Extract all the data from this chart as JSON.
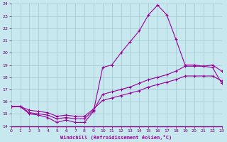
{
  "xlabel": "Windchill (Refroidissement éolien,°C)",
  "xlim": [
    0,
    23
  ],
  "ylim": [
    14,
    24
  ],
  "yticks": [
    14,
    15,
    16,
    17,
    18,
    19,
    20,
    21,
    22,
    23,
    24
  ],
  "xticks": [
    0,
    1,
    2,
    3,
    4,
    5,
    6,
    7,
    8,
    9,
    10,
    11,
    12,
    13,
    14,
    15,
    16,
    17,
    18,
    19,
    20,
    21,
    22,
    23
  ],
  "bg_color": "#c8e8f0",
  "grid_color": "#a0c8d0",
  "line_color": "#990099",
  "curve1_x": [
    0,
    1,
    2,
    3,
    4,
    5,
    6,
    7,
    8,
    9,
    10,
    11,
    12,
    13,
    14,
    15,
    16,
    17,
    18,
    19,
    20,
    21,
    22,
    23
  ],
  "curve1_y": [
    15.6,
    15.6,
    15.0,
    14.9,
    14.7,
    14.3,
    14.5,
    14.3,
    14.3,
    15.2,
    18.8,
    19.0,
    20.0,
    20.9,
    21.8,
    23.1,
    23.9,
    23.1,
    21.1,
    19.0,
    19.0,
    18.9,
    18.8,
    17.5
  ],
  "curve2_x": [
    0,
    1,
    2,
    3,
    4,
    5,
    6,
    7,
    8,
    9,
    10,
    11,
    12,
    13,
    14,
    15,
    16,
    17,
    18,
    19,
    20,
    21,
    22,
    23
  ],
  "curve2_y": [
    15.6,
    15.6,
    15.1,
    15.0,
    14.9,
    14.6,
    14.7,
    14.6,
    14.6,
    15.3,
    16.6,
    16.8,
    17.0,
    17.2,
    17.5,
    17.8,
    18.0,
    18.2,
    18.5,
    18.9,
    18.9,
    18.9,
    19.0,
    18.5
  ],
  "curve3_x": [
    0,
    1,
    2,
    3,
    4,
    5,
    6,
    7,
    8,
    9,
    10,
    11,
    12,
    13,
    14,
    15,
    16,
    17,
    18,
    19,
    20,
    21,
    22,
    23
  ],
  "curve3_y": [
    15.6,
    15.6,
    15.3,
    15.2,
    15.1,
    14.8,
    14.9,
    14.8,
    14.8,
    15.4,
    16.1,
    16.3,
    16.5,
    16.7,
    16.9,
    17.2,
    17.4,
    17.6,
    17.8,
    18.1,
    18.1,
    18.1,
    18.1,
    17.7
  ]
}
